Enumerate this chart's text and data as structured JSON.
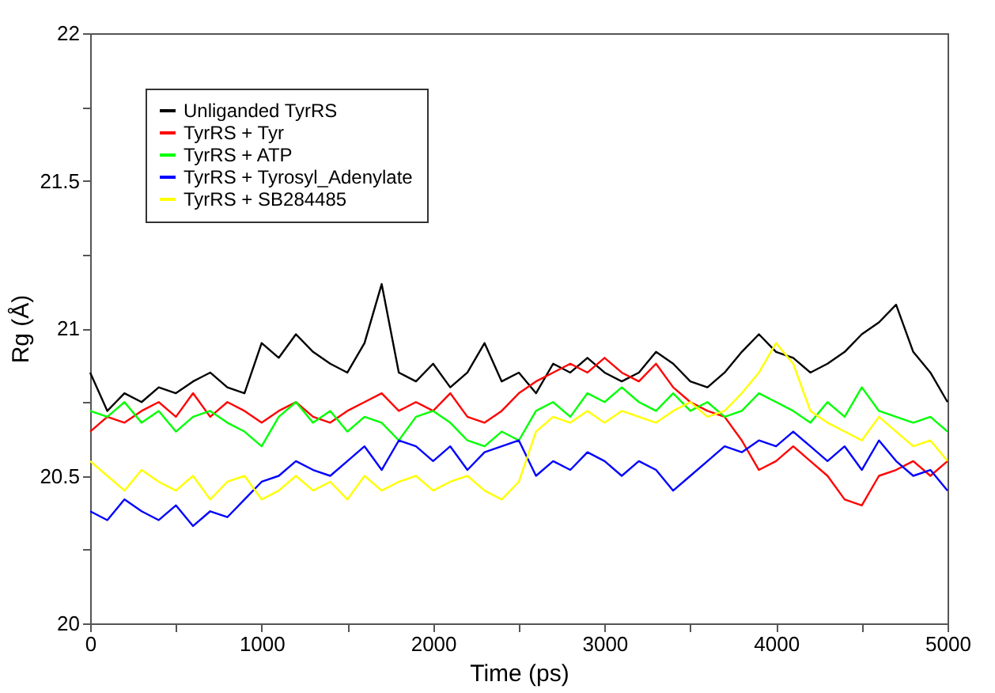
{
  "chart_data": {
    "type": "line",
    "xlabel": "Time (ps)",
    "ylabel": "Rg (Å)",
    "x": [
      0,
      100,
      200,
      300,
      400,
      500,
      600,
      700,
      800,
      900,
      1000,
      1100,
      1200,
      1300,
      1400,
      1500,
      1600,
      1700,
      1800,
      1900,
      2000,
      2100,
      2200,
      2300,
      2400,
      2500,
      2600,
      2700,
      2800,
      2900,
      3000,
      3100,
      3200,
      3300,
      3400,
      3500,
      3600,
      3700,
      3800,
      3900,
      4000,
      4100,
      4200,
      4300,
      4400,
      4500,
      4600,
      4700,
      4800,
      4900,
      5000
    ],
    "series": [
      {
        "name": "Unliganded TyrRS",
        "color": "#000000",
        "values": [
          20.85,
          20.72,
          20.78,
          20.75,
          20.8,
          20.78,
          20.82,
          20.85,
          20.8,
          20.78,
          20.95,
          20.9,
          20.98,
          20.92,
          20.88,
          20.85,
          20.95,
          21.15,
          20.85,
          20.82,
          20.88,
          20.8,
          20.85,
          20.95,
          20.82,
          20.85,
          20.78,
          20.88,
          20.85,
          20.9,
          20.85,
          20.82,
          20.85,
          20.92,
          20.88,
          20.82,
          20.8,
          20.85,
          20.92,
          20.98,
          20.92,
          20.9,
          20.85,
          20.88,
          20.92,
          20.98,
          21.02,
          21.08,
          20.92,
          20.85,
          20.75
        ]
      },
      {
        "name": "TyrRS + Tyr",
        "color": "#ff0000",
        "values": [
          20.65,
          20.7,
          20.68,
          20.72,
          20.75,
          20.7,
          20.78,
          20.7,
          20.75,
          20.72,
          20.68,
          20.72,
          20.75,
          20.7,
          20.68,
          20.72,
          20.75,
          20.78,
          20.72,
          20.75,
          20.72,
          20.78,
          20.7,
          20.68,
          20.72,
          20.78,
          20.82,
          20.85,
          20.88,
          20.85,
          20.9,
          20.85,
          20.82,
          20.88,
          20.8,
          20.75,
          20.72,
          20.7,
          20.62,
          20.52,
          20.55,
          20.6,
          20.55,
          20.5,
          20.42,
          20.4,
          20.5,
          20.52,
          20.55,
          20.5,
          20.55
        ]
      },
      {
        "name": "TyrRS + ATP",
        "color": "#00ff00",
        "values": [
          20.72,
          20.7,
          20.75,
          20.68,
          20.72,
          20.65,
          20.7,
          20.72,
          20.68,
          20.65,
          20.6,
          20.7,
          20.75,
          20.68,
          20.72,
          20.65,
          20.7,
          20.68,
          20.62,
          20.7,
          20.72,
          20.68,
          20.62,
          20.6,
          20.65,
          20.62,
          20.72,
          20.75,
          20.7,
          20.78,
          20.75,
          20.8,
          20.75,
          20.72,
          20.78,
          20.72,
          20.75,
          20.7,
          20.72,
          20.78,
          20.75,
          20.72,
          20.68,
          20.75,
          20.7,
          20.8,
          20.72,
          20.7,
          20.68,
          20.7,
          20.65
        ]
      },
      {
        "name": "TyrRS + Tyrosyl_Adenylate",
        "color": "#0000ff",
        "values": [
          20.38,
          20.35,
          20.42,
          20.38,
          20.35,
          20.4,
          20.33,
          20.38,
          20.36,
          20.42,
          20.48,
          20.5,
          20.55,
          20.52,
          20.5,
          20.55,
          20.6,
          20.52,
          20.62,
          20.6,
          20.55,
          20.6,
          20.52,
          20.58,
          20.6,
          20.62,
          20.5,
          20.55,
          20.52,
          20.58,
          20.55,
          20.5,
          20.55,
          20.52,
          20.45,
          20.5,
          20.55,
          20.6,
          20.58,
          20.62,
          20.6,
          20.65,
          20.6,
          20.55,
          20.6,
          20.52,
          20.62,
          20.55,
          20.5,
          20.52,
          20.45
        ]
      },
      {
        "name": "TyrRS + SB284485",
        "color": "#ffff00",
        "values": [
          20.55,
          20.5,
          20.45,
          20.52,
          20.48,
          20.45,
          20.5,
          20.42,
          20.48,
          20.5,
          20.42,
          20.45,
          20.5,
          20.45,
          20.48,
          20.42,
          20.5,
          20.45,
          20.48,
          20.5,
          20.45,
          20.48,
          20.5,
          20.45,
          20.42,
          20.48,
          20.65,
          20.7,
          20.68,
          20.72,
          20.68,
          20.72,
          20.7,
          20.68,
          20.72,
          20.75,
          20.7,
          20.72,
          20.78,
          20.85,
          20.95,
          20.88,
          20.72,
          20.68,
          20.65,
          20.62,
          20.7,
          20.65,
          20.6,
          20.62,
          20.55
        ]
      }
    ],
    "xlim": [
      0,
      5000
    ],
    "ylim": [
      20,
      22
    ],
    "xticks": [
      0,
      {
        "value": 500,
        "label": null
      },
      1000,
      {
        "value": 1500,
        "label": null
      },
      2000,
      {
        "value": 2500,
        "label": null
      },
      3000,
      {
        "value": 3500,
        "label": null
      },
      4000,
      {
        "value": 4500,
        "label": null
      },
      5000
    ],
    "yticks": [
      20,
      {
        "value": 20.25,
        "label": null
      },
      20.5,
      {
        "value": 20.75,
        "label": null
      },
      21,
      {
        "value": 21.25,
        "label": null
      },
      21.5,
      {
        "value": 21.75,
        "label": null
      },
      22
    ],
    "grid": false,
    "legend": "top left",
    "marker": "none",
    "line_style": "solid"
  }
}
